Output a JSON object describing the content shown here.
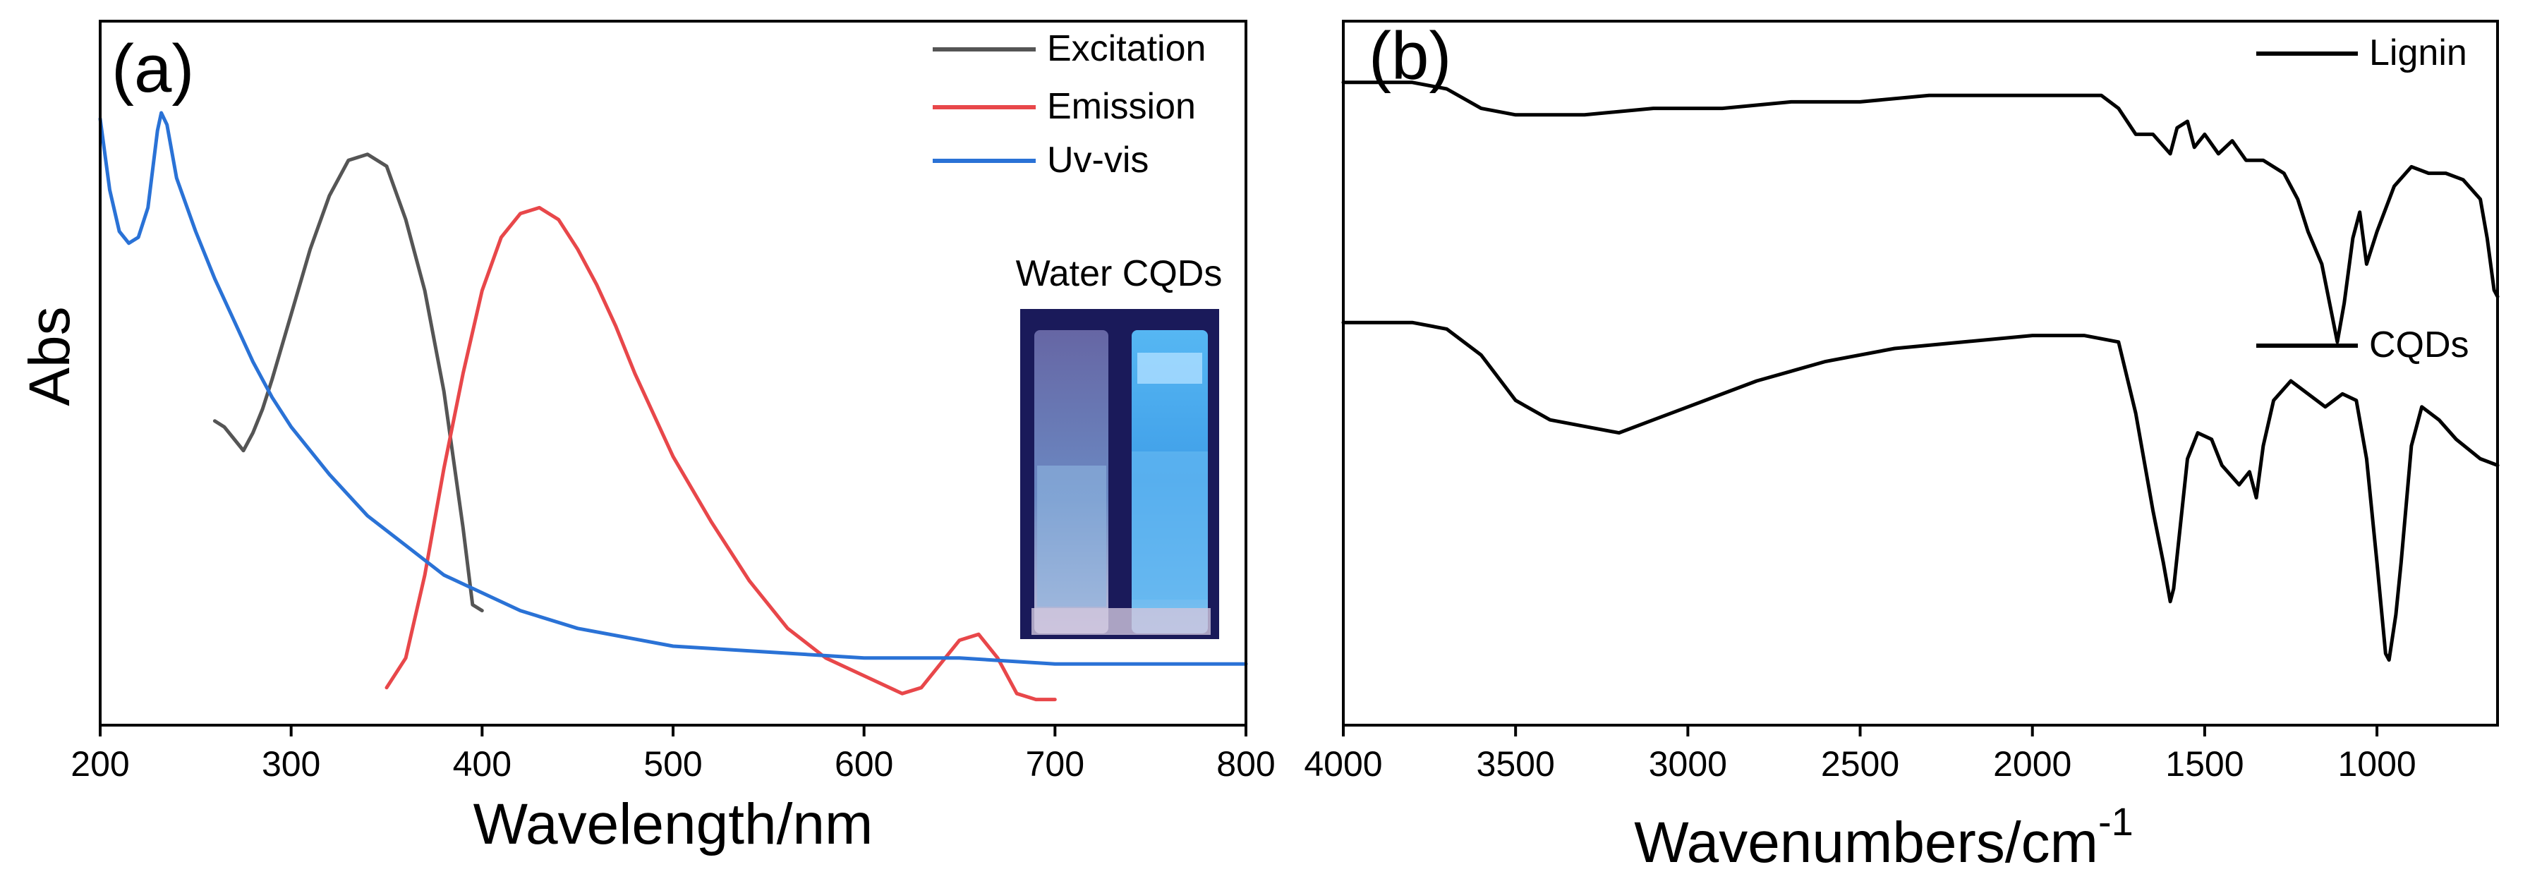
{
  "chart_data": [
    {
      "panel_label": "(a)",
      "type": "line",
      "xlabel": "Wavelength/nm",
      "ylabel": "Abs",
      "xlim": [
        200,
        800
      ],
      "ylim": [
        0,
        1
      ],
      "xticks": [
        200,
        300,
        400,
        500,
        600,
        700,
        800
      ],
      "legend": [
        "Excitation",
        "Emission",
        "Uv-vis"
      ],
      "legend_position": "top-right",
      "inset_label": "Water CQDs",
      "series": [
        {
          "name": "Excitation",
          "color": "#555555",
          "points": [
            [
              260,
              0.48
            ],
            [
              265,
              0.47
            ],
            [
              270,
              0.45
            ],
            [
              275,
              0.43
            ],
            [
              280,
              0.46
            ],
            [
              285,
              0.5
            ],
            [
              290,
              0.55
            ],
            [
              300,
              0.66
            ],
            [
              310,
              0.77
            ],
            [
              320,
              0.86
            ],
            [
              330,
              0.92
            ],
            [
              340,
              0.93
            ],
            [
              350,
              0.91
            ],
            [
              360,
              0.82
            ],
            [
              370,
              0.7
            ],
            [
              380,
              0.53
            ],
            [
              390,
              0.3
            ],
            [
              395,
              0.17
            ],
            [
              400,
              0.16
            ]
          ]
        },
        {
          "name": "Emission",
          "color": "#e8474a",
          "points": [
            [
              350,
              0.03
            ],
            [
              360,
              0.08
            ],
            [
              370,
              0.22
            ],
            [
              380,
              0.4
            ],
            [
              390,
              0.56
            ],
            [
              400,
              0.7
            ],
            [
              410,
              0.79
            ],
            [
              420,
              0.83
            ],
            [
              430,
              0.84
            ],
            [
              440,
              0.82
            ],
            [
              450,
              0.77
            ],
            [
              460,
              0.71
            ],
            [
              470,
              0.64
            ],
            [
              480,
              0.56
            ],
            [
              500,
              0.42
            ],
            [
              520,
              0.31
            ],
            [
              540,
              0.21
            ],
            [
              560,
              0.13
            ],
            [
              580,
              0.08
            ],
            [
              600,
              0.05
            ],
            [
              620,
              0.02
            ],
            [
              630,
              0.03
            ],
            [
              640,
              0.07
            ],
            [
              650,
              0.11
            ],
            [
              660,
              0.12
            ],
            [
              670,
              0.08
            ],
            [
              680,
              0.02
            ],
            [
              690,
              0.01
            ],
            [
              700,
              0.01
            ]
          ]
        },
        {
          "name": "Uv-vis",
          "color": "#2a72d6",
          "points": [
            [
              200,
              0.99
            ],
            [
              205,
              0.87
            ],
            [
              210,
              0.8
            ],
            [
              215,
              0.78
            ],
            [
              220,
              0.79
            ],
            [
              225,
              0.84
            ],
            [
              230,
              0.97
            ],
            [
              232,
              1.0
            ],
            [
              235,
              0.98
            ],
            [
              240,
              0.89
            ],
            [
              250,
              0.8
            ],
            [
              260,
              0.72
            ],
            [
              270,
              0.65
            ],
            [
              280,
              0.58
            ],
            [
              290,
              0.52
            ],
            [
              300,
              0.47
            ],
            [
              320,
              0.39
            ],
            [
              340,
              0.32
            ],
            [
              360,
              0.27
            ],
            [
              380,
              0.22
            ],
            [
              400,
              0.19
            ],
            [
              420,
              0.16
            ],
            [
              450,
              0.13
            ],
            [
              500,
              0.1
            ],
            [
              550,
              0.09
            ],
            [
              600,
              0.08
            ],
            [
              650,
              0.08
            ],
            [
              700,
              0.07
            ],
            [
              750,
              0.07
            ],
            [
              800,
              0.07
            ]
          ]
        }
      ]
    },
    {
      "panel_label": "(b)",
      "type": "line",
      "xlabel": "Wavenumbers/cm",
      "xlabel_superscript": "-1",
      "xlim": [
        4000,
        650
      ],
      "ylim": [
        0,
        1
      ],
      "xticks": [
        4000,
        3500,
        3000,
        2500,
        2000,
        1500,
        1000
      ],
      "legend_position": "top-right",
      "series": [
        {
          "name": "Lignin",
          "color": "#000000",
          "points": [
            [
              4000,
              0.96
            ],
            [
              3800,
              0.96
            ],
            [
              3700,
              0.95
            ],
            [
              3600,
              0.92
            ],
            [
              3500,
              0.91
            ],
            [
              3300,
              0.91
            ],
            [
              3100,
              0.92
            ],
            [
              2900,
              0.92
            ],
            [
              2700,
              0.93
            ],
            [
              2500,
              0.93
            ],
            [
              2300,
              0.94
            ],
            [
              2100,
              0.94
            ],
            [
              1900,
              0.94
            ],
            [
              1800,
              0.94
            ],
            [
              1750,
              0.92
            ],
            [
              1700,
              0.88
            ],
            [
              1650,
              0.88
            ],
            [
              1600,
              0.85
            ],
            [
              1580,
              0.89
            ],
            [
              1550,
              0.9
            ],
            [
              1530,
              0.86
            ],
            [
              1500,
              0.88
            ],
            [
              1460,
              0.85
            ],
            [
              1420,
              0.87
            ],
            [
              1380,
              0.84
            ],
            [
              1330,
              0.84
            ],
            [
              1270,
              0.82
            ],
            [
              1230,
              0.78
            ],
            [
              1200,
              0.73
            ],
            [
              1160,
              0.68
            ],
            [
              1130,
              0.6
            ],
            [
              1115,
              0.56
            ],
            [
              1095,
              0.62
            ],
            [
              1070,
              0.72
            ],
            [
              1050,
              0.76
            ],
            [
              1030,
              0.68
            ],
            [
              1000,
              0.73
            ],
            [
              950,
              0.8
            ],
            [
              900,
              0.83
            ],
            [
              850,
              0.82
            ],
            [
              800,
              0.82
            ],
            [
              750,
              0.81
            ],
            [
              700,
              0.78
            ],
            [
              680,
              0.72
            ],
            [
              660,
              0.64
            ],
            [
              650,
              0.63
            ]
          ]
        },
        {
          "name": "CQDs",
          "color": "#000000",
          "points": [
            [
              4000,
              0.59
            ],
            [
              3800,
              0.59
            ],
            [
              3700,
              0.58
            ],
            [
              3600,
              0.54
            ],
            [
              3500,
              0.47
            ],
            [
              3400,
              0.44
            ],
            [
              3300,
              0.43
            ],
            [
              3200,
              0.42
            ],
            [
              3100,
              0.44
            ],
            [
              3000,
              0.46
            ],
            [
              2900,
              0.48
            ],
            [
              2800,
              0.5
            ],
            [
              2600,
              0.53
            ],
            [
              2400,
              0.55
            ],
            [
              2200,
              0.56
            ],
            [
              2000,
              0.57
            ],
            [
              1850,
              0.57
            ],
            [
              1750,
              0.56
            ],
            [
              1700,
              0.45
            ],
            [
              1650,
              0.3
            ],
            [
              1620,
              0.22
            ],
            [
              1600,
              0.16
            ],
            [
              1590,
              0.18
            ],
            [
              1570,
              0.28
            ],
            [
              1550,
              0.38
            ],
            [
              1520,
              0.42
            ],
            [
              1480,
              0.41
            ],
            [
              1450,
              0.37
            ],
            [
              1400,
              0.34
            ],
            [
              1370,
              0.36
            ],
            [
              1350,
              0.32
            ],
            [
              1330,
              0.4
            ],
            [
              1300,
              0.47
            ],
            [
              1250,
              0.5
            ],
            [
              1200,
              0.48
            ],
            [
              1150,
              0.46
            ],
            [
              1100,
              0.48
            ],
            [
              1060,
              0.47
            ],
            [
              1030,
              0.38
            ],
            [
              1000,
              0.22
            ],
            [
              975,
              0.08
            ],
            [
              965,
              0.07
            ],
            [
              945,
              0.14
            ],
            [
              930,
              0.22
            ],
            [
              900,
              0.4
            ],
            [
              870,
              0.46
            ],
            [
              820,
              0.44
            ],
            [
              770,
              0.41
            ],
            [
              700,
              0.38
            ],
            [
              650,
              0.37
            ]
          ]
        }
      ]
    }
  ]
}
